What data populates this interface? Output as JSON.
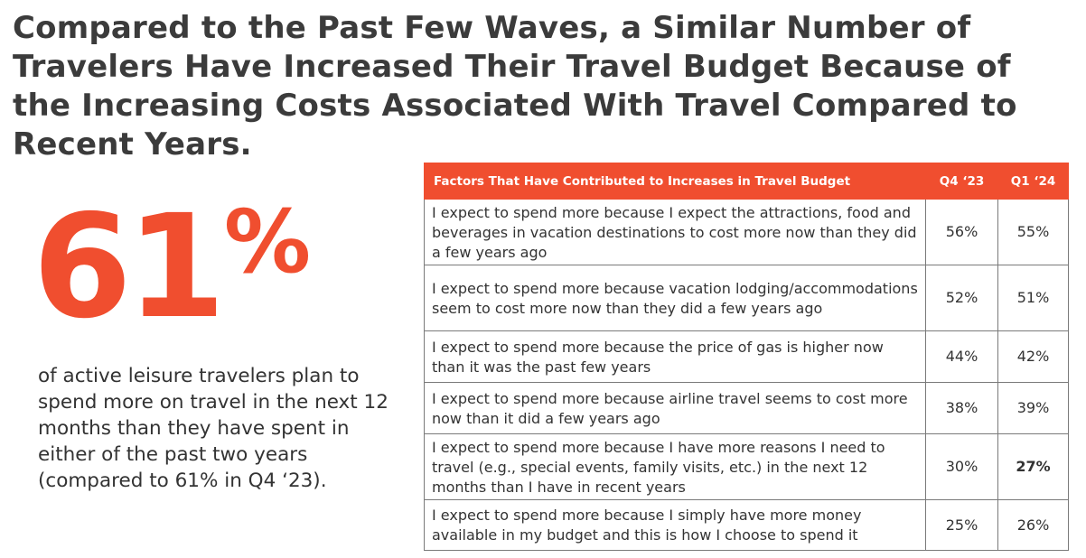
{
  "title": "Compared to the Past Few Waves, a Similar Number of Travelers Have Increased Their Travel Budget Because of the Increasing Costs Associated With Travel Compared to Recent Years.",
  "stat": {
    "number": "61",
    "percent_sign": "%",
    "description": "of active leisure travelers plan to spend more on travel in the next 12 months than they have spent in either of the past two years (compared to 61% in Q4 ‘23).",
    "color": "#f04e2f"
  },
  "table": {
    "header_color": "#f04e2f",
    "headers": [
      "Factors That Have Contributed to Increases in Travel Budget",
      "Q4 ‘23",
      "Q1 ‘24"
    ],
    "rows": [
      {
        "factor": "I expect to spend more because I expect the attractions, food and beverages in vacation destinations to cost more now than they did a few years ago",
        "q4_23": "56%",
        "q1_24": "55%"
      },
      {
        "factor": "I expect to spend more because vacation lodging/accommodations seem to cost more now than they did a few years ago",
        "q4_23": "52%",
        "q1_24": "51%"
      },
      {
        "factor": "I expect to spend more because the price of gas is higher now than it was the past few years",
        "q4_23": "44%",
        "q1_24": "42%"
      },
      {
        "factor": "I expect to spend more because airline travel seems to cost more now than it did a few years ago",
        "q4_23": "38%",
        "q1_24": "39%"
      },
      {
        "factor": "I expect to spend more because I have more reasons I need to travel (e.g., special events, family visits, etc.) in the next 12 months than I have in recent years",
        "q4_23": "30%",
        "q1_24": "27%",
        "q1_24_bold": true
      },
      {
        "factor": "I expect to spend more because I simply have more money available in my budget and this is how I choose to spend it",
        "q4_23": "25%",
        "q1_24": "26%"
      }
    ]
  }
}
